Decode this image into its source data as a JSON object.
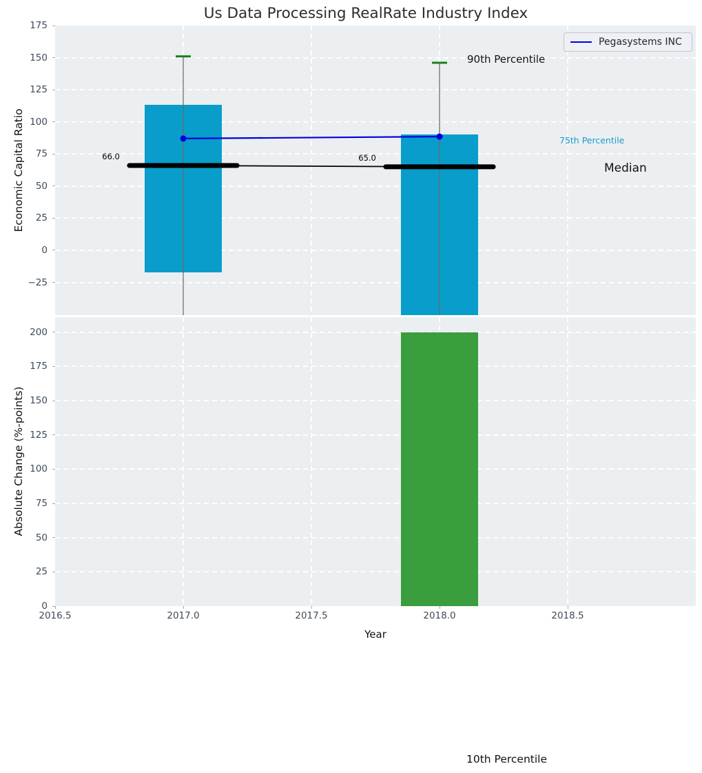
{
  "title": "Us Data Processing RealRate Industry Index",
  "legend": {
    "label": "Pegasystems INC",
    "line_color": "#0000dd"
  },
  "annotations": {
    "p90": "90th Percentile",
    "p75": "75th Percentile",
    "median": "Median",
    "p10": "10th Percentile"
  },
  "colors": {
    "box_bar": "#089dcb",
    "change_bar": "#3a9d3e",
    "whisker_cap": "#168016",
    "whisker_line": "#6b6b6b",
    "median_line": "#000000",
    "company_line": "#0000dd",
    "plot_background": "#eceff1",
    "grid": "#ffffff",
    "tick_text": "#3d4a57",
    "p75_annotation": "#189ccc"
  },
  "chart_data": [
    {
      "type": "bar",
      "subtype": "percentile-box-with-line",
      "ylabel": "Economic Capital Ratio",
      "xlim": [
        2016.5,
        2019.0
      ],
      "ylim": [
        -50.5,
        175
      ],
      "yticks": [
        175,
        150,
        125,
        100,
        75,
        50,
        25,
        0,
        -25
      ],
      "xticks": [
        2016.5,
        2017.0,
        2017.5,
        2018.0,
        2018.5
      ],
      "grid": true,
      "legend_position": "upper right",
      "years": [
        2017,
        2018
      ],
      "p90": [
        151,
        146
      ],
      "p75": [
        113,
        90
      ],
      "median": [
        66,
        65
      ],
      "median_labels": [
        "66.0",
        "65.0"
      ],
      "p25": [
        -17,
        null
      ],
      "p10": [
        null,
        null
      ],
      "p10_clipped_below_axis": true,
      "series": [
        {
          "name": "Pegasystems INC",
          "values": [
            87,
            88.5
          ]
        }
      ],
      "bar_width_years": 0.3,
      "median_width_years": 0.42
    },
    {
      "type": "bar",
      "ylabel": "Absolute Change (%-points)",
      "xlabel": "Year",
      "xlim": [
        2016.5,
        2019.0
      ],
      "ylim": [
        0,
        211
      ],
      "yticks": [
        200,
        175,
        150,
        125,
        100,
        75,
        50,
        25,
        0
      ],
      "xticks": [
        2016.5,
        2017.0,
        2017.5,
        2018.0,
        2018.5
      ],
      "xtick_labels": [
        "2016.5",
        "2017.0",
        "2017.5",
        "2018.0",
        "2018.5"
      ],
      "grid": true,
      "categories": [
        2018
      ],
      "values": [
        200
      ],
      "bar_width_years": 0.3
    }
  ]
}
